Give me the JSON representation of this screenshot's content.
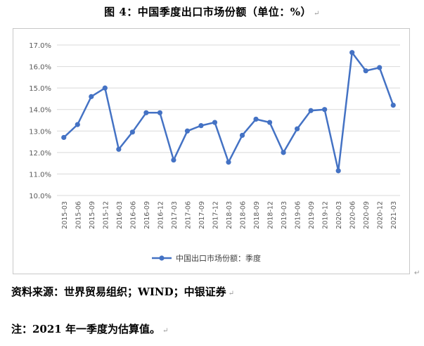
{
  "figure": {
    "title": "图 4：中国季度出口市场份额（单位：%）",
    "source": "资料来源：世界贸易组织；WIND；中银证券",
    "note": "注：2021 年一季度为估算值。",
    "return_mark": "↵"
  },
  "chart_data": {
    "type": "line",
    "title": "",
    "xlabel": "",
    "ylabel": "",
    "categories": [
      "2015-03",
      "2015-06",
      "2015-09",
      "2015-12",
      "2016-03",
      "2016-06",
      "2016-09",
      "2016-12",
      "2017-03",
      "2017-06",
      "2017-09",
      "2017-12",
      "2018-03",
      "2018-06",
      "2018-09",
      "2018-12",
      "2019-03",
      "2019-06",
      "2019-09",
      "2019-12",
      "2020-03",
      "2020-06",
      "2020-09",
      "2020-12",
      "2021-03"
    ],
    "series": [
      {
        "name": "中国出口市场份额：季度",
        "color": "#4472c4",
        "values": [
          12.7,
          13.3,
          14.6,
          15.0,
          12.15,
          12.95,
          13.85,
          13.85,
          11.65,
          13.0,
          13.25,
          13.4,
          11.55,
          12.8,
          13.55,
          13.4,
          12.0,
          13.1,
          13.95,
          14.0,
          11.15,
          16.65,
          15.8,
          15.95,
          14.2
        ]
      }
    ],
    "ylim": [
      10,
      17
    ],
    "yticks": [
      "10.0%",
      "11.0%",
      "12.0%",
      "13.0%",
      "14.0%",
      "15.0%",
      "16.0%",
      "17.0%"
    ],
    "grid": true,
    "legend_position": "bottom"
  }
}
